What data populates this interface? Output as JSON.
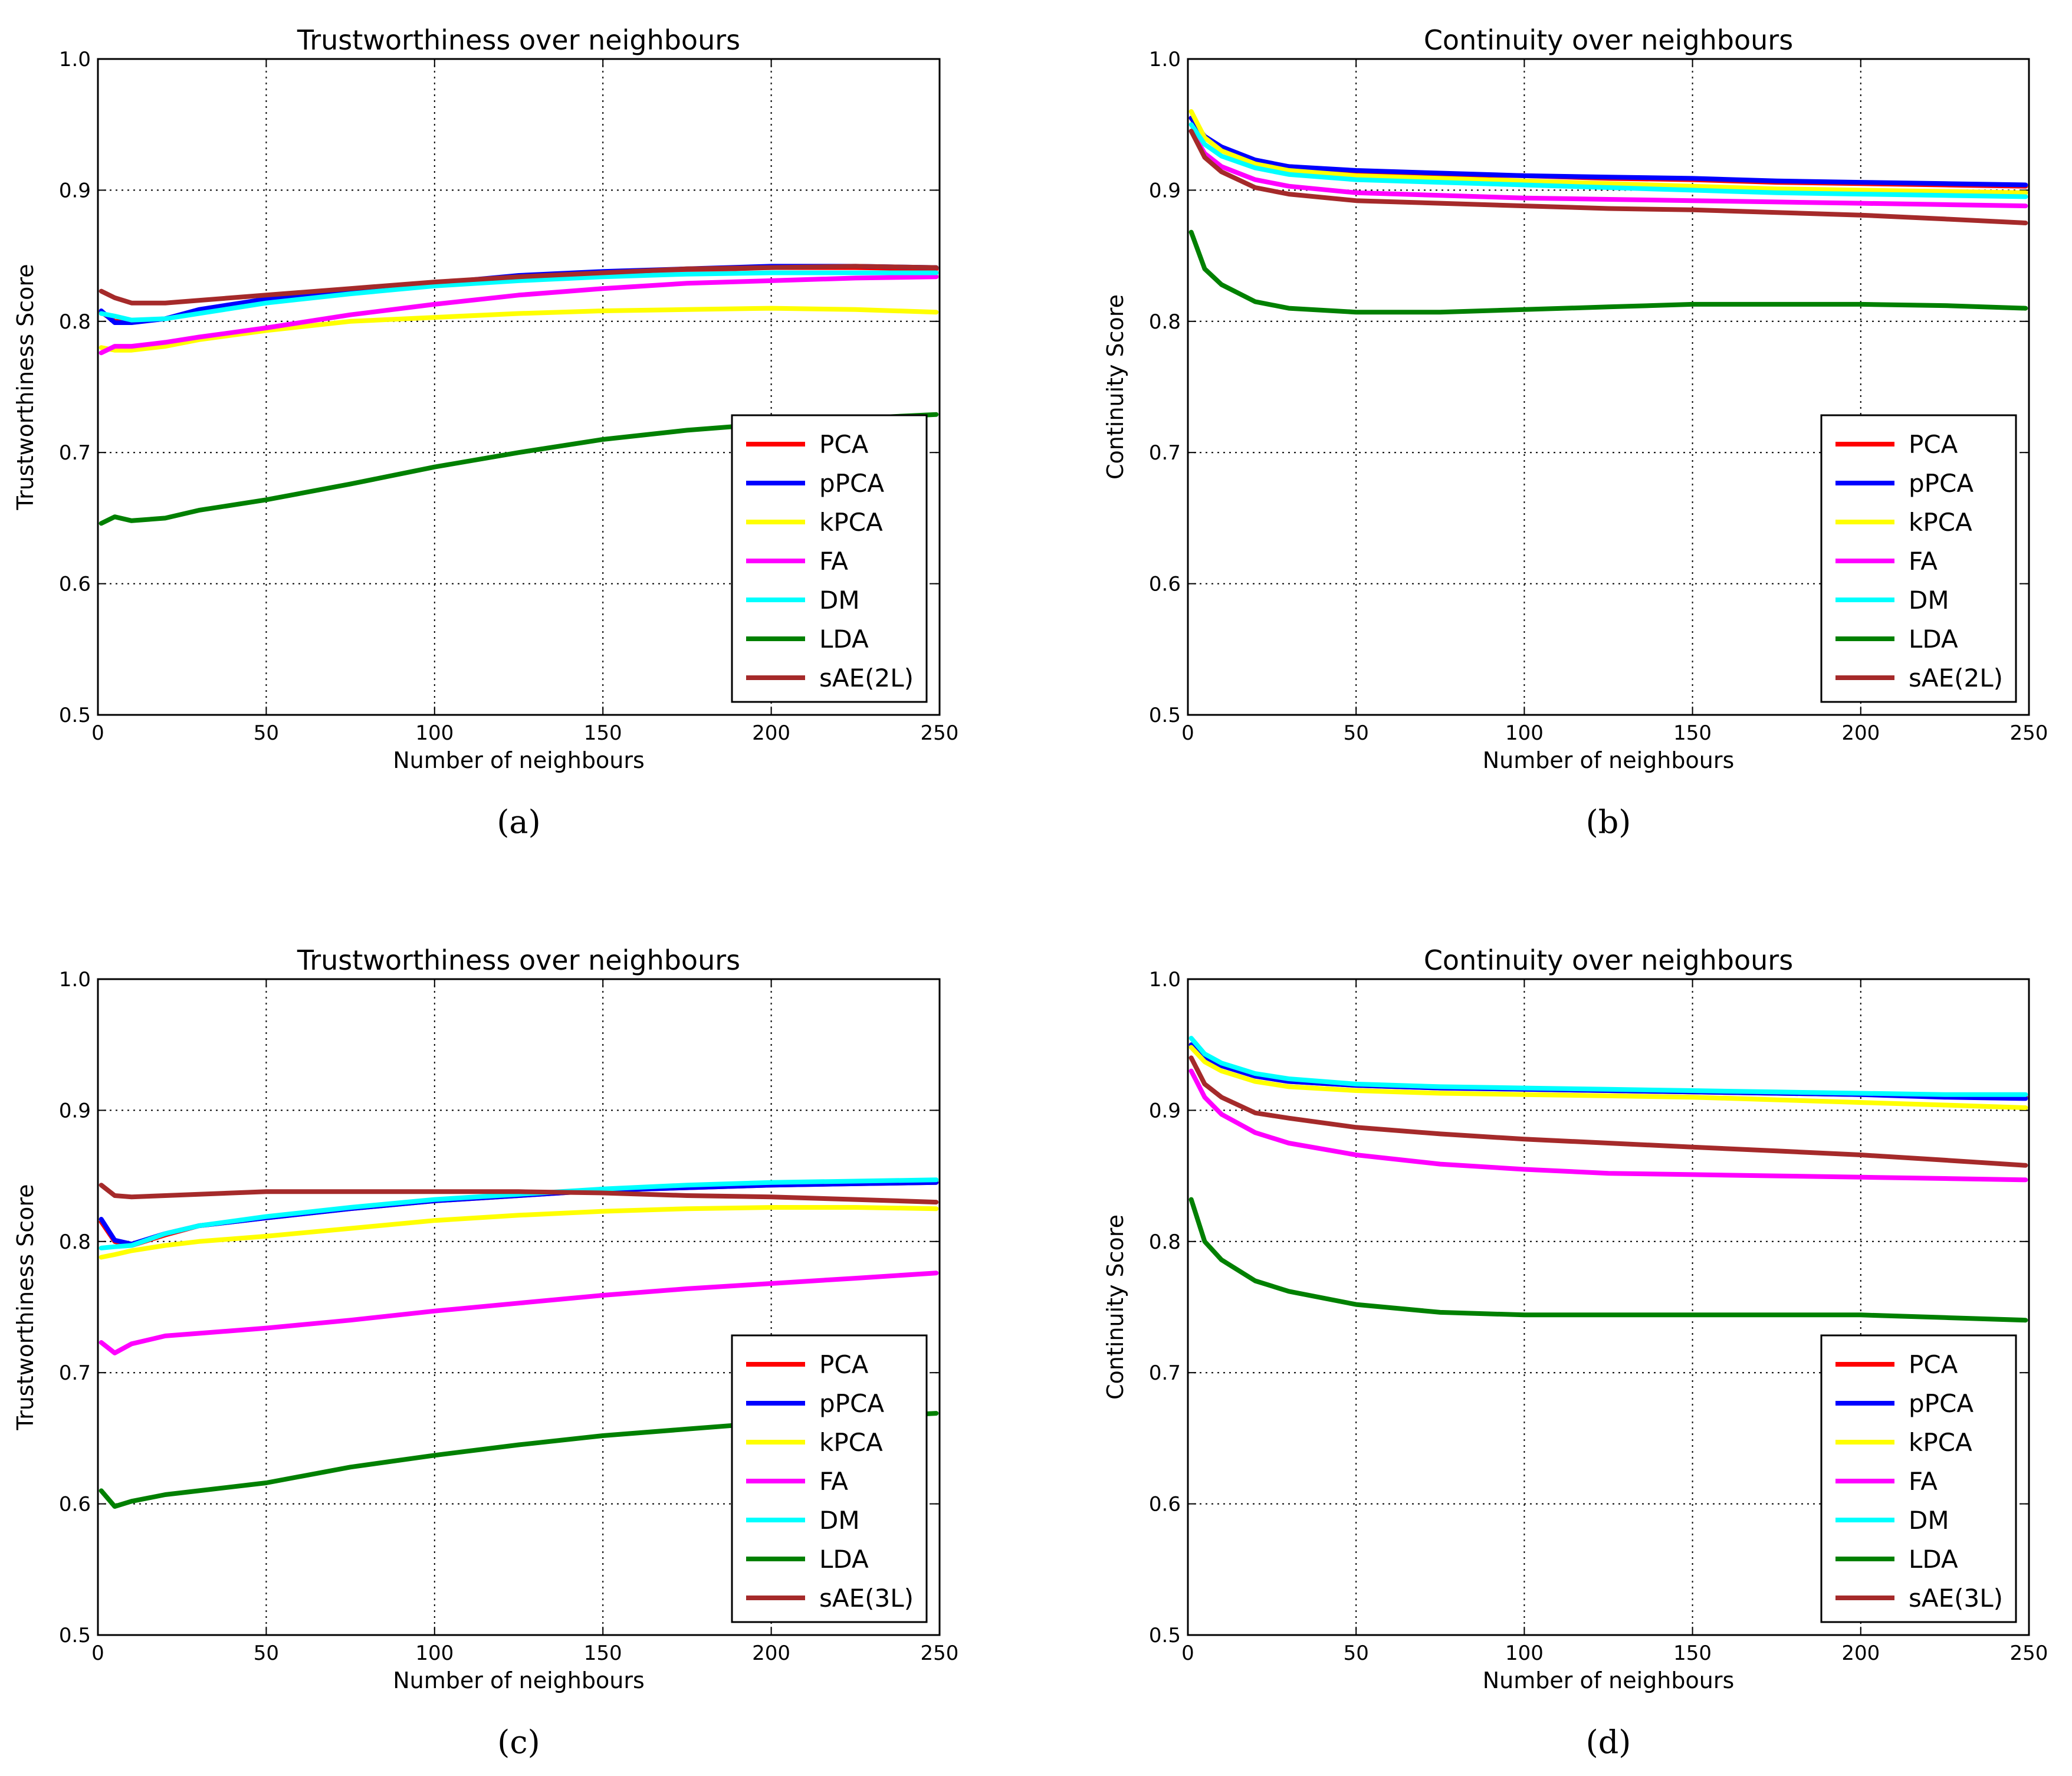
{
  "chart_data": [
    {
      "id": "a",
      "type": "line",
      "title": "Trustworthiness over neighbours",
      "xlabel": "Number of neighbours",
      "ylabel": "Trustworthiness Score",
      "caption": "(a)",
      "xlim": [
        0,
        250
      ],
      "ylim": [
        0.5,
        1.0
      ],
      "xticks": [
        "0",
        "50",
        "100",
        "150",
        "200",
        "250"
      ],
      "yticks": [
        "0.5",
        "0.6",
        "0.7",
        "0.8",
        "0.9",
        "1.0"
      ],
      "grid": true,
      "legend_position": "lower-right",
      "x": [
        1,
        5,
        10,
        20,
        30,
        50,
        75,
        100,
        125,
        150,
        175,
        200,
        225,
        249
      ],
      "series": [
        {
          "name": "PCA",
          "color": "#ff0000",
          "values": [
            0.807,
            0.8,
            0.8,
            0.802,
            0.807,
            0.815,
            0.822,
            0.829,
            0.834,
            0.837,
            0.839,
            0.841,
            0.841,
            0.84
          ]
        },
        {
          "name": "pPCA",
          "color": "#0000ff",
          "values": [
            0.808,
            0.799,
            0.799,
            0.802,
            0.809,
            0.817,
            0.823,
            0.829,
            0.835,
            0.838,
            0.84,
            0.842,
            0.842,
            0.841
          ]
        },
        {
          "name": "kPCA",
          "color": "#ffff00",
          "values": [
            0.78,
            0.778,
            0.778,
            0.781,
            0.786,
            0.793,
            0.8,
            0.803,
            0.806,
            0.808,
            0.809,
            0.81,
            0.809,
            0.807
          ]
        },
        {
          "name": "FA",
          "color": "#ff00ff",
          "values": [
            0.776,
            0.781,
            0.781,
            0.784,
            0.788,
            0.795,
            0.805,
            0.813,
            0.82,
            0.825,
            0.829,
            0.831,
            0.833,
            0.834
          ]
        },
        {
          "name": "DM",
          "color": "#00ffff",
          "values": [
            0.806,
            0.804,
            0.801,
            0.802,
            0.806,
            0.814,
            0.821,
            0.827,
            0.831,
            0.834,
            0.836,
            0.837,
            0.837,
            0.837
          ]
        },
        {
          "name": "LDA",
          "color": "#008000",
          "values": [
            0.646,
            0.651,
            0.648,
            0.65,
            0.656,
            0.664,
            0.676,
            0.689,
            0.7,
            0.71,
            0.717,
            0.722,
            0.726,
            0.729
          ]
        },
        {
          "name": "sAE(2L)",
          "color": "#a52a2a",
          "values": [
            0.823,
            0.818,
            0.814,
            0.814,
            0.816,
            0.82,
            0.825,
            0.83,
            0.834,
            0.837,
            0.84,
            0.841,
            0.842,
            0.841
          ]
        }
      ]
    },
    {
      "id": "b",
      "type": "line",
      "title": "Continuity over neighbours",
      "xlabel": "Number of neighbours",
      "ylabel": "Continuity Score",
      "caption": "(b)",
      "xlim": [
        0,
        250
      ],
      "ylim": [
        0.5,
        1.0
      ],
      "xticks": [
        "0",
        "50",
        "100",
        "150",
        "200",
        "250"
      ],
      "yticks": [
        "0.5",
        "0.6",
        "0.7",
        "0.8",
        "0.9",
        "1.0"
      ],
      "grid": true,
      "legend_position": "lower-right",
      "x": [
        1,
        5,
        10,
        20,
        30,
        50,
        75,
        100,
        125,
        150,
        175,
        200,
        225,
        249
      ],
      "series": [
        {
          "name": "PCA",
          "color": "#ff0000",
          "values": [
            0.955,
            0.94,
            0.932,
            0.922,
            0.918,
            0.914,
            0.912,
            0.911,
            0.909,
            0.908,
            0.906,
            0.905,
            0.904,
            0.903
          ]
        },
        {
          "name": "pPCA",
          "color": "#0000ff",
          "values": [
            0.955,
            0.941,
            0.933,
            0.923,
            0.918,
            0.915,
            0.913,
            0.911,
            0.91,
            0.909,
            0.907,
            0.906,
            0.905,
            0.904
          ]
        },
        {
          "name": "kPCA",
          "color": "#ffff00",
          "values": [
            0.96,
            0.94,
            0.93,
            0.92,
            0.915,
            0.911,
            0.909,
            0.907,
            0.905,
            0.903,
            0.901,
            0.9,
            0.899,
            0.898
          ]
        },
        {
          "name": "FA",
          "color": "#ff00ff",
          "values": [
            0.945,
            0.928,
            0.918,
            0.908,
            0.903,
            0.898,
            0.896,
            0.894,
            0.893,
            0.892,
            0.891,
            0.89,
            0.889,
            0.888
          ]
        },
        {
          "name": "DM",
          "color": "#00ffff",
          "values": [
            0.95,
            0.935,
            0.926,
            0.917,
            0.912,
            0.908,
            0.906,
            0.904,
            0.902,
            0.9,
            0.898,
            0.897,
            0.896,
            0.895
          ]
        },
        {
          "name": "LDA",
          "color": "#008000",
          "values": [
            0.868,
            0.84,
            0.828,
            0.815,
            0.81,
            0.807,
            0.807,
            0.809,
            0.811,
            0.813,
            0.813,
            0.813,
            0.812,
            0.81
          ]
        },
        {
          "name": "sAE(2L)",
          "color": "#a52a2a",
          "values": [
            0.945,
            0.925,
            0.914,
            0.902,
            0.897,
            0.892,
            0.89,
            0.888,
            0.886,
            0.885,
            0.883,
            0.881,
            0.878,
            0.875
          ]
        }
      ]
    },
    {
      "id": "c",
      "type": "line",
      "title": "Trustworthiness over neighbours",
      "xlabel": "Number of neighbours",
      "ylabel": "Trustworthiness Score",
      "caption": "(c)",
      "xlim": [
        0,
        250
      ],
      "ylim": [
        0.5,
        1.0
      ],
      "xticks": [
        "0",
        "50",
        "100",
        "150",
        "200",
        "250"
      ],
      "yticks": [
        "0.5",
        "0.6",
        "0.7",
        "0.8",
        "0.9",
        "1.0"
      ],
      "grid": true,
      "legend_position": "lower-right",
      "x": [
        1,
        5,
        10,
        20,
        30,
        50,
        75,
        100,
        125,
        150,
        175,
        200,
        225,
        249
      ],
      "series": [
        {
          "name": "PCA",
          "color": "#ff0000",
          "values": [
            0.815,
            0.8,
            0.797,
            0.805,
            0.812,
            0.818,
            0.825,
            0.831,
            0.835,
            0.839,
            0.841,
            0.843,
            0.844,
            0.845
          ]
        },
        {
          "name": "pPCA",
          "color": "#0000ff",
          "values": [
            0.817,
            0.801,
            0.798,
            0.806,
            0.812,
            0.818,
            0.825,
            0.831,
            0.835,
            0.839,
            0.841,
            0.843,
            0.844,
            0.845
          ]
        },
        {
          "name": "kPCA",
          "color": "#ffff00",
          "values": [
            0.788,
            0.79,
            0.793,
            0.797,
            0.8,
            0.804,
            0.81,
            0.816,
            0.82,
            0.823,
            0.825,
            0.826,
            0.826,
            0.825
          ]
        },
        {
          "name": "FA",
          "color": "#ff00ff",
          "values": [
            0.723,
            0.715,
            0.722,
            0.728,
            0.73,
            0.734,
            0.74,
            0.747,
            0.753,
            0.759,
            0.764,
            0.768,
            0.772,
            0.776
          ]
        },
        {
          "name": "DM",
          "color": "#00ffff",
          "values": [
            0.795,
            0.796,
            0.797,
            0.806,
            0.812,
            0.819,
            0.826,
            0.832,
            0.836,
            0.84,
            0.843,
            0.845,
            0.846,
            0.847
          ]
        },
        {
          "name": "LDA",
          "color": "#008000",
          "values": [
            0.61,
            0.598,
            0.602,
            0.607,
            0.61,
            0.616,
            0.628,
            0.637,
            0.645,
            0.652,
            0.657,
            0.662,
            0.666,
            0.669
          ]
        },
        {
          "name": "sAE(3L)",
          "color": "#a52a2a",
          "values": [
            0.843,
            0.835,
            0.834,
            0.835,
            0.836,
            0.838,
            0.838,
            0.838,
            0.838,
            0.837,
            0.835,
            0.834,
            0.832,
            0.83
          ]
        }
      ]
    },
    {
      "id": "d",
      "type": "line",
      "title": "Continuity over neighbours",
      "xlabel": "Number of neighbours",
      "ylabel": "Continuity Score",
      "caption": "(d)",
      "xlim": [
        0,
        250
      ],
      "ylim": [
        0.5,
        1.0
      ],
      "xticks": [
        "0",
        "50",
        "100",
        "150",
        "200",
        "250"
      ],
      "yticks": [
        "0.5",
        "0.6",
        "0.7",
        "0.8",
        "0.9",
        "1.0"
      ],
      "grid": true,
      "legend_position": "lower-right",
      "x": [
        1,
        5,
        10,
        20,
        30,
        50,
        75,
        100,
        125,
        150,
        175,
        200,
        225,
        249
      ],
      "series": [
        {
          "name": "PCA",
          "color": "#ff0000",
          "values": [
            0.95,
            0.94,
            0.934,
            0.926,
            0.922,
            0.919,
            0.917,
            0.916,
            0.915,
            0.914,
            0.913,
            0.912,
            0.911,
            0.91
          ]
        },
        {
          "name": "pPCA",
          "color": "#0000ff",
          "values": [
            0.95,
            0.94,
            0.934,
            0.926,
            0.922,
            0.919,
            0.917,
            0.916,
            0.915,
            0.914,
            0.913,
            0.912,
            0.91,
            0.909
          ]
        },
        {
          "name": "kPCA",
          "color": "#ffff00",
          "values": [
            0.948,
            0.937,
            0.93,
            0.922,
            0.918,
            0.915,
            0.913,
            0.912,
            0.911,
            0.91,
            0.908,
            0.906,
            0.904,
            0.902
          ]
        },
        {
          "name": "FA",
          "color": "#ff00ff",
          "values": [
            0.93,
            0.91,
            0.897,
            0.883,
            0.875,
            0.866,
            0.859,
            0.855,
            0.852,
            0.851,
            0.85,
            0.849,
            0.848,
            0.847
          ]
        },
        {
          "name": "DM",
          "color": "#00ffff",
          "values": [
            0.955,
            0.943,
            0.936,
            0.928,
            0.924,
            0.92,
            0.918,
            0.917,
            0.916,
            0.915,
            0.914,
            0.913,
            0.912,
            0.912
          ]
        },
        {
          "name": "LDA",
          "color": "#008000",
          "values": [
            0.832,
            0.8,
            0.786,
            0.77,
            0.762,
            0.752,
            0.746,
            0.744,
            0.744,
            0.744,
            0.744,
            0.744,
            0.742,
            0.74
          ]
        },
        {
          "name": "sAE(3L)",
          "color": "#a52a2a",
          "values": [
            0.94,
            0.92,
            0.91,
            0.898,
            0.894,
            0.887,
            0.882,
            0.878,
            0.875,
            0.872,
            0.869,
            0.866,
            0.862,
            0.858
          ]
        }
      ]
    }
  ]
}
